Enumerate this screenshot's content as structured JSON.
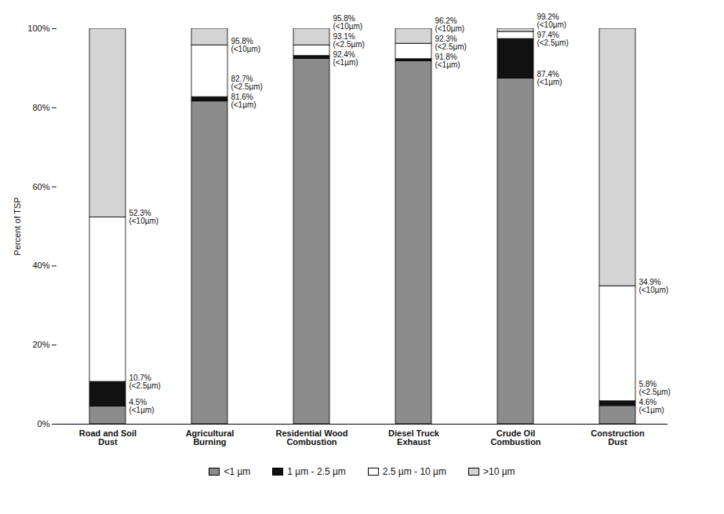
{
  "chart_data": {
    "type": "bar",
    "stacked": true,
    "categories": [
      "Road and Soil Dust",
      "Agricultural Burning",
      "Residential Wood Combustion",
      "Diesel Truck Exhaust",
      "Crude Oil Combustion",
      "Construction Dust"
    ],
    "series": [
      {
        "name": "<1 µm",
        "color": "#8c8c8c",
        "values": [
          4.5,
          81.6,
          92.4,
          91.8,
          87.4,
          4.6
        ]
      },
      {
        "name": "1 µm - 2.5 µm",
        "color": "#111111",
        "values": [
          6.2,
          1.1,
          0.7,
          0.5,
          10.0,
          1.2
        ]
      },
      {
        "name": "2.5 µm - 10 µm",
        "color": "#ffffff",
        "values": [
          41.6,
          13.1,
          2.7,
          3.9,
          1.8,
          29.1
        ]
      },
      {
        "name": ">10 µm",
        "color": "#d4d4d4",
        "values": [
          47.7,
          4.2,
          4.2,
          3.8,
          0.8,
          65.1
        ]
      }
    ],
    "annotations": [
      [
        "4.5%\n(<1µm)",
        "10.7%\n(<2.5µm)",
        "52.3%\n(<10µm)"
      ],
      [
        "81.6%\n(<1µm)",
        "82.7%\n(<2.5µm)",
        "95.8%\n(<10µm)"
      ],
      [
        "92.4%\n(<1µm)",
        "93.1%\n(<2.5µm)",
        "95.8%\n(<10µm)"
      ],
      [
        "91.8%\n(<1µm)",
        "92.3%\n(<2.5µm)",
        "96.2%\n(<10µm)"
      ],
      [
        "87.4%\n(<1µm)",
        "97.4%\n(<2.5µm)",
        "99.2%\n(<10µm)"
      ],
      [
        "4.6%\n(<1µm)",
        "5.8%\n(<2.5µm)",
        "34.9%\n(<10µm)"
      ]
    ],
    "y_label": "Percent of TSP",
    "ylim": [
      0,
      100
    ],
    "yticks": [
      {
        "value": 0,
        "label": "0%"
      },
      {
        "value": 20,
        "label": "20%"
      },
      {
        "value": 40,
        "label": "40%"
      },
      {
        "value": 60,
        "label": "60%"
      },
      {
        "value": 80,
        "label": "80%"
      },
      {
        "value": 100,
        "label": "100%"
      }
    ],
    "grid": false,
    "legend": "bottom"
  }
}
